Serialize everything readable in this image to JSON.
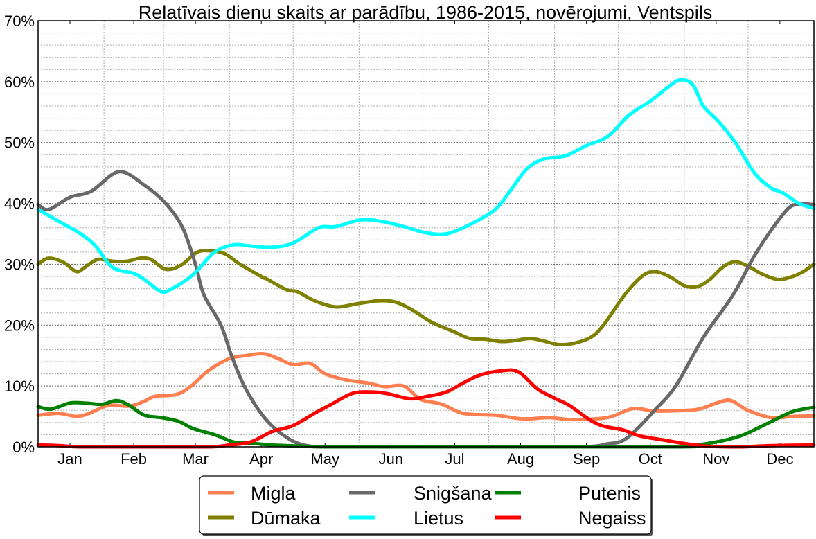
{
  "chart_data": {
    "type": "line",
    "title": "Relatīvais dienu skaits ar parādību, 1986-2015, novērojumi, Ventspils",
    "xlabel": "",
    "ylabel": "",
    "xlim": [
      0,
      365
    ],
    "ylim": [
      0,
      70
    ],
    "grid": true,
    "legend_position": "bottom-center",
    "y_ticks": [
      0,
      10,
      20,
      30,
      40,
      50,
      60,
      70
    ],
    "y_tick_labels": [
      "0%",
      "10%",
      "20%",
      "30%",
      "40%",
      "50%",
      "60%",
      "70%"
    ],
    "x_ticks": [
      15,
      45,
      74,
      105,
      135,
      166,
      196,
      227,
      258,
      288,
      319,
      349
    ],
    "x_tick_labels": [
      "Jan",
      "Feb",
      "Mar",
      "Apr",
      "May",
      "Jun",
      "Jul",
      "Aug",
      "Sep",
      "Oct",
      "Nov",
      "Dec"
    ],
    "month_boundaries": [
      31,
      59,
      90,
      120,
      151,
      181,
      212,
      243,
      273,
      304,
      334
    ],
    "x_unit": "day of year",
    "series": [
      {
        "name": "Migla",
        "color": "#ff7f50",
        "points": [
          [
            0,
            5.2
          ],
          [
            10,
            5.5
          ],
          [
            18,
            5.0
          ],
          [
            24,
            5.5
          ],
          [
            33,
            6.8
          ],
          [
            43,
            6.7
          ],
          [
            50,
            7.5
          ],
          [
            55,
            8.3
          ],
          [
            65,
            8.6
          ],
          [
            72,
            10
          ],
          [
            80,
            12.5
          ],
          [
            90,
            14.5
          ],
          [
            98,
            15
          ],
          [
            106,
            15.3
          ],
          [
            113,
            14.5
          ],
          [
            120,
            13.5
          ],
          [
            128,
            13.7
          ],
          [
            135,
            12
          ],
          [
            145,
            11
          ],
          [
            155,
            10.5
          ],
          [
            163,
            9.9
          ],
          [
            172,
            10
          ],
          [
            180,
            7.8
          ],
          [
            190,
            7
          ],
          [
            200,
            5.5
          ],
          [
            215,
            5.2
          ],
          [
            228,
            4.6
          ],
          [
            240,
            4.8
          ],
          [
            250,
            4.5
          ],
          [
            262,
            4.6
          ],
          [
            270,
            5
          ],
          [
            280,
            6.3
          ],
          [
            290,
            5.9
          ],
          [
            305,
            6
          ],
          [
            312,
            6.3
          ],
          [
            320,
            7.3
          ],
          [
            326,
            7.6
          ],
          [
            334,
            6
          ],
          [
            345,
            4.8
          ],
          [
            355,
            5
          ],
          [
            365,
            5.1
          ]
        ]
      },
      {
        "name": "Dūmaka",
        "color": "#808000",
        "points": [
          [
            0,
            30
          ],
          [
            5,
            31
          ],
          [
            12,
            30.3
          ],
          [
            18,
            28.8
          ],
          [
            22,
            29.5
          ],
          [
            28,
            30.8
          ],
          [
            35,
            30.5
          ],
          [
            42,
            30.5
          ],
          [
            48,
            31
          ],
          [
            53,
            30.8
          ],
          [
            60,
            29.2
          ],
          [
            67,
            29.8
          ],
          [
            75,
            32
          ],
          [
            82,
            32.2
          ],
          [
            88,
            31.7
          ],
          [
            95,
            30
          ],
          [
            105,
            28
          ],
          [
            108,
            27.5
          ],
          [
            117,
            25.8
          ],
          [
            122,
            25.5
          ],
          [
            130,
            24
          ],
          [
            140,
            23
          ],
          [
            150,
            23.5
          ],
          [
            160,
            24
          ],
          [
            168,
            23.8
          ],
          [
            176,
            22.5
          ],
          [
            185,
            20.5
          ],
          [
            195,
            19
          ],
          [
            203,
            17.8
          ],
          [
            210,
            17.7
          ],
          [
            218,
            17.3
          ],
          [
            225,
            17.5
          ],
          [
            232,
            17.8
          ],
          [
            240,
            17.2
          ],
          [
            245,
            16.8
          ],
          [
            252,
            17
          ],
          [
            260,
            18
          ],
          [
            266,
            20
          ],
          [
            276,
            25
          ],
          [
            284,
            28
          ],
          [
            290,
            28.8
          ],
          [
            297,
            28
          ],
          [
            304,
            26.5
          ],
          [
            310,
            26.3
          ],
          [
            316,
            27.5
          ],
          [
            322,
            29.5
          ],
          [
            328,
            30.4
          ],
          [
            335,
            29.5
          ],
          [
            340,
            28.5
          ],
          [
            348,
            27.5
          ],
          [
            355,
            28
          ],
          [
            360,
            28.8
          ],
          [
            365,
            30
          ]
        ]
      },
      {
        "name": "Snigšana",
        "color": "#696969",
        "points": [
          [
            0,
            39.8
          ],
          [
            5,
            39
          ],
          [
            15,
            41
          ],
          [
            25,
            42
          ],
          [
            38,
            45.2
          ],
          [
            50,
            43
          ],
          [
            60,
            40
          ],
          [
            68,
            36
          ],
          [
            74,
            30
          ],
          [
            78,
            25
          ],
          [
            86,
            20
          ],
          [
            91,
            15
          ],
          [
            97,
            10
          ],
          [
            106,
            5
          ],
          [
            115,
            2
          ],
          [
            125,
            0.3
          ],
          [
            140,
            0
          ],
          [
            200,
            0
          ],
          [
            255,
            0
          ],
          [
            268,
            0.5
          ],
          [
            275,
            1
          ],
          [
            282,
            3
          ],
          [
            290,
            6
          ],
          [
            300,
            10
          ],
          [
            313,
            18
          ],
          [
            327,
            25
          ],
          [
            338,
            32
          ],
          [
            350,
            38
          ],
          [
            356,
            39.8
          ],
          [
            365,
            39.8
          ]
        ]
      },
      {
        "name": "Lietus",
        "color": "#00ffff",
        "points": [
          [
            0,
            39
          ],
          [
            10,
            37
          ],
          [
            20,
            35
          ],
          [
            27,
            33
          ],
          [
            35,
            29.5
          ],
          [
            45,
            28.5
          ],
          [
            50,
            27.5
          ],
          [
            58,
            25.5
          ],
          [
            63,
            26
          ],
          [
            70,
            27.5
          ],
          [
            75,
            29
          ],
          [
            83,
            32
          ],
          [
            92,
            33.2
          ],
          [
            100,
            33
          ],
          [
            110,
            32.8
          ],
          [
            120,
            33.5
          ],
          [
            132,
            36
          ],
          [
            140,
            36.2
          ],
          [
            152,
            37.3
          ],
          [
            162,
            37
          ],
          [
            172,
            36.2
          ],
          [
            182,
            35.2
          ],
          [
            192,
            35
          ],
          [
            203,
            36.5
          ],
          [
            215,
            39
          ],
          [
            222,
            42
          ],
          [
            230,
            45.7
          ],
          [
            238,
            47.3
          ],
          [
            248,
            47.8
          ],
          [
            258,
            49.5
          ],
          [
            268,
            51
          ],
          [
            278,
            54.5
          ],
          [
            288,
            56.8
          ],
          [
            296,
            59
          ],
          [
            302,
            60.3
          ],
          [
            308,
            59.5
          ],
          [
            313,
            56
          ],
          [
            320,
            53.5
          ],
          [
            328,
            50
          ],
          [
            337,
            45
          ],
          [
            345,
            42.5
          ],
          [
            350,
            41.8
          ],
          [
            358,
            40
          ],
          [
            365,
            39.2
          ]
        ]
      },
      {
        "name": "Putenis",
        "color": "#008000",
        "points": [
          [
            0,
            6.6
          ],
          [
            6,
            6.2
          ],
          [
            15,
            7.2
          ],
          [
            22,
            7.2
          ],
          [
            30,
            7
          ],
          [
            37,
            7.6
          ],
          [
            43,
            6.8
          ],
          [
            50,
            5.2
          ],
          [
            58,
            4.8
          ],
          [
            66,
            4.2
          ],
          [
            73,
            3
          ],
          [
            83,
            2
          ],
          [
            92,
            0.8
          ],
          [
            100,
            0.6
          ],
          [
            110,
            0.3
          ],
          [
            125,
            0.1
          ],
          [
            140,
            0
          ],
          [
            200,
            0
          ],
          [
            300,
            0
          ],
          [
            310,
            0.3
          ],
          [
            322,
            1
          ],
          [
            332,
            2
          ],
          [
            344,
            4
          ],
          [
            355,
            5.8
          ],
          [
            365,
            6.5
          ]
        ]
      },
      {
        "name": "Negaiss",
        "color": "#ff0000",
        "points": [
          [
            0,
            0.3
          ],
          [
            10,
            0.2
          ],
          [
            20,
            0
          ],
          [
            50,
            0
          ],
          [
            80,
            0
          ],
          [
            90,
            0.3
          ],
          [
            100,
            0.8
          ],
          [
            110,
            2.5
          ],
          [
            120,
            3.5
          ],
          [
            130,
            5.5
          ],
          [
            138,
            7
          ],
          [
            148,
            8.8
          ],
          [
            158,
            9
          ],
          [
            165,
            8.7
          ],
          [
            175,
            7.9
          ],
          [
            183,
            8.3
          ],
          [
            192,
            9
          ],
          [
            200,
            10.5
          ],
          [
            208,
            11.8
          ],
          [
            218,
            12.5
          ],
          [
            226,
            12.3
          ],
          [
            235,
            9.5
          ],
          [
            243,
            8
          ],
          [
            250,
            6.8
          ],
          [
            258,
            4.8
          ],
          [
            265,
            3.5
          ],
          [
            275,
            2.8
          ],
          [
            283,
            1.8
          ],
          [
            293,
            1.2
          ],
          [
            305,
            0.5
          ],
          [
            315,
            0.1
          ],
          [
            330,
            0
          ],
          [
            345,
            0.2
          ],
          [
            365,
            0.3
          ]
        ]
      }
    ]
  }
}
